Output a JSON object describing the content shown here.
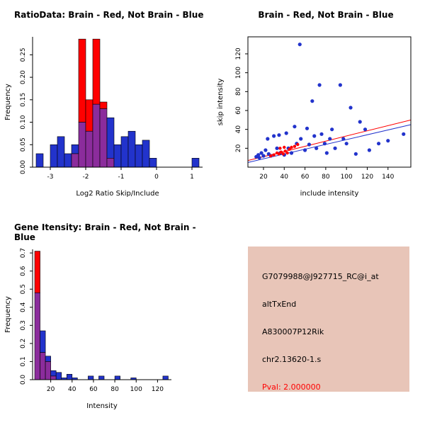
{
  "chart_data": [
    {
      "type": "bar",
      "title": "RatioData: Brain - Red, Not Brain - Blue",
      "xlabel": "Log2 Ratio Skip/Include",
      "ylabel": "Frequency",
      "xlim": [
        -3.5,
        1.3
      ],
      "ylim": [
        0,
        0.29
      ],
      "xtick_vals": [
        -3,
        -2,
        -1,
        0,
        1
      ],
      "xtick_labels": [
        "-3",
        "-2",
        "-1",
        "0",
        "1"
      ],
      "ytick_vals": [
        0,
        0.05,
        0.1,
        0.15,
        0.2,
        0.25
      ],
      "ytick_labels": [
        "0.00",
        "0.05",
        "0.10",
        "0.15",
        "0.20",
        "0.25"
      ],
      "bin_width": 0.2,
      "colors": {
        "red": "#FF0000",
        "blue": "#2233CC",
        "overlap": "#8B2C9C"
      },
      "bins": [
        {
          "x": -3.4,
          "blue": 0.03,
          "red": 0
        },
        {
          "x": -3.0,
          "blue": 0.05,
          "red": 0
        },
        {
          "x": -2.8,
          "blue": 0.068,
          "red": 0
        },
        {
          "x": -2.6,
          "blue": 0.03,
          "red": 0
        },
        {
          "x": -2.4,
          "blue": 0.05,
          "red": 0.03
        },
        {
          "x": -2.2,
          "blue": 0.1,
          "red": 0.285
        },
        {
          "x": -2.0,
          "blue": 0.08,
          "red": 0.15
        },
        {
          "x": -1.8,
          "blue": 0.14,
          "red": 0.285
        },
        {
          "x": -1.6,
          "blue": 0.13,
          "red": 0.145
        },
        {
          "x": -1.4,
          "blue": 0.11,
          "red": 0.02
        },
        {
          "x": -1.2,
          "blue": 0.05,
          "red": 0
        },
        {
          "x": -1.0,
          "blue": 0.068,
          "red": 0
        },
        {
          "x": -0.8,
          "blue": 0.08,
          "red": 0
        },
        {
          "x": -0.6,
          "blue": 0.05,
          "red": 0
        },
        {
          "x": -0.4,
          "blue": 0.06,
          "red": 0
        },
        {
          "x": -0.2,
          "blue": 0.02,
          "red": 0
        },
        {
          "x": 1.0,
          "blue": 0.02,
          "red": 0
        }
      ]
    },
    {
      "type": "scatter",
      "title": "Brain - Red, Not Brain - Blue",
      "xlabel": "include intensity",
      "ylabel": "skip intensity",
      "xlim": [
        5,
        162
      ],
      "ylim": [
        0,
        138
      ],
      "xtick_vals": [
        20,
        40,
        60,
        80,
        100,
        120,
        140
      ],
      "xtick_labels": [
        "20",
        "40",
        "60",
        "80",
        "100",
        "120",
        "140"
      ],
      "ytick_vals": [
        20,
        40,
        60,
        80,
        100,
        120
      ],
      "ytick_labels": [
        "20",
        "40",
        "60",
        "80",
        "100",
        "120"
      ],
      "series": [
        {
          "name": "Not Brain",
          "color": "#2233CC",
          "marker_r": 2.6,
          "points": [
            [
              13,
              11
            ],
            [
              15,
              13
            ],
            [
              16,
              10
            ],
            [
              18,
              15
            ],
            [
              20,
              12
            ],
            [
              22,
              18
            ],
            [
              24,
              30
            ],
            [
              25,
              14
            ],
            [
              27,
              12
            ],
            [
              30,
              33
            ],
            [
              33,
              20
            ],
            [
              35,
              34
            ],
            [
              36,
              15
            ],
            [
              40,
              13
            ],
            [
              42,
              36
            ],
            [
              44,
              20
            ],
            [
              47,
              15
            ],
            [
              50,
              43
            ],
            [
              52,
              25
            ],
            [
              55,
              130
            ],
            [
              56,
              30
            ],
            [
              60,
              18
            ],
            [
              62,
              41
            ],
            [
              64,
              24
            ],
            [
              67,
              70
            ],
            [
              69,
              33
            ],
            [
              71,
              20
            ],
            [
              74,
              87
            ],
            [
              76,
              35
            ],
            [
              79,
              25
            ],
            [
              81,
              15
            ],
            [
              84,
              30
            ],
            [
              86,
              40
            ],
            [
              89,
              20
            ],
            [
              94,
              87
            ],
            [
              97,
              30
            ],
            [
              100,
              25
            ],
            [
              104,
              63
            ],
            [
              109,
              14
            ],
            [
              113,
              48
            ],
            [
              118,
              40
            ],
            [
              122,
              18
            ],
            [
              131,
              25
            ],
            [
              140,
              28
            ],
            [
              155,
              35
            ]
          ]
        },
        {
          "name": "Brain",
          "color": "#FF0000",
          "marker_r": 2.2,
          "points": [
            [
              27,
              12
            ],
            [
              30,
              13
            ],
            [
              33,
              15
            ],
            [
              35,
              14
            ],
            [
              36,
              20
            ],
            [
              37,
              16
            ],
            [
              39,
              14
            ],
            [
              40,
              21
            ],
            [
              41,
              17
            ],
            [
              43,
              15
            ],
            [
              45,
              19
            ],
            [
              47,
              21
            ],
            [
              50,
              22
            ],
            [
              53,
              24
            ]
          ]
        }
      ],
      "lines": [
        {
          "color": "#FF0000",
          "x1": 5,
          "y1": 7,
          "x2": 162,
          "y2": 50
        },
        {
          "color": "#2233CC",
          "x1": 5,
          "y1": 5,
          "x2": 162,
          "y2": 45
        }
      ]
    },
    {
      "type": "bar",
      "title": "Gene Itensity: Brain - Red, Not Brain - Blue",
      "xlabel": "Intensity",
      "ylabel": "Frequency",
      "xlim": [
        3,
        133
      ],
      "ylim": [
        0,
        0.72
      ],
      "xtick_vals": [
        20,
        40,
        60,
        80,
        100,
        120
      ],
      "xtick_labels": [
        "20",
        "40",
        "60",
        "80",
        "100",
        "120"
      ],
      "ytick_vals": [
        0,
        0.1,
        0.2,
        0.3,
        0.4,
        0.5,
        0.6,
        0.7
      ],
      "ytick_labels": [
        "0.0",
        "0.1",
        "0.2",
        "0.3",
        "0.4",
        "0.5",
        "0.6",
        "0.7"
      ],
      "bin_width": 5,
      "colors": {
        "red": "#FF0000",
        "blue": "#2233CC",
        "overlap": "#8B2C9C"
      },
      "bins": [
        {
          "x": 5,
          "blue": 0.48,
          "red": 0.71
        },
        {
          "x": 10,
          "blue": 0.27,
          "red": 0.15
        },
        {
          "x": 15,
          "blue": 0.13,
          "red": 0.1
        },
        {
          "x": 20,
          "blue": 0.05,
          "red": 0.02
        },
        {
          "x": 25,
          "blue": 0.04,
          "red": 0
        },
        {
          "x": 30,
          "blue": 0.01,
          "red": 0
        },
        {
          "x": 35,
          "blue": 0.03,
          "red": 0
        },
        {
          "x": 40,
          "blue": 0.01,
          "red": 0
        },
        {
          "x": 55,
          "blue": 0.02,
          "red": 0
        },
        {
          "x": 65,
          "blue": 0.02,
          "red": 0
        },
        {
          "x": 80,
          "blue": 0.02,
          "red": 0
        },
        {
          "x": 95,
          "blue": 0.01,
          "red": 0
        },
        {
          "x": 125,
          "blue": 0.02,
          "red": 0
        }
      ]
    }
  ],
  "info_box": {
    "box_style": "background:#E8C5B8",
    "lines": [
      "G7079988@J927715_RC@i_at",
      "altTxEnd",
      "A830007P12Rik",
      "chr2.13620-1.s",
      "Pval: 2.000000"
    ],
    "pval_style": "color:#FF0000"
  }
}
